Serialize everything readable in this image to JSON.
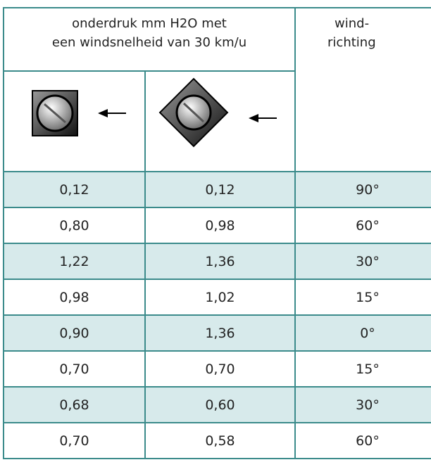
{
  "table": {
    "header": {
      "group_lines": [
        "onderdruk mm H2O met",
        "een windsnelheid van 30 km/u"
      ],
      "direction_lines": [
        "wind-",
        "richting"
      ]
    },
    "rows": [
      [
        "0,12",
        "0,12",
        "90°"
      ],
      [
        "0,80",
        "0,98",
        "60°"
      ],
      [
        "1,22",
        "1,36",
        "30°"
      ],
      [
        "0,98",
        "1,02",
        "15°"
      ],
      [
        "0,90",
        "1,36",
        "0°"
      ],
      [
        "0,70",
        "0,70",
        "15°"
      ],
      [
        "0,68",
        "0,60",
        "30°"
      ],
      [
        "0,70",
        "0,58",
        "60°"
      ]
    ]
  }
}
